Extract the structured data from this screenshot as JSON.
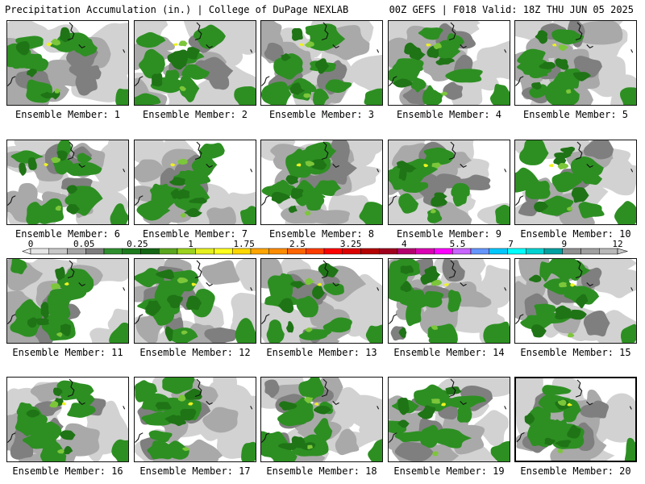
{
  "header": {
    "left": "Precipitation Accumulation (in.) | College of DuPage NEXLAB",
    "right": "00Z GEFS | F018 Valid: 18Z THU JUN 05 2025"
  },
  "panels": [
    {
      "label": "Ensemble Member: 1"
    },
    {
      "label": "Ensemble Member: 2"
    },
    {
      "label": "Ensemble Member: 3"
    },
    {
      "label": "Ensemble Member: 4"
    },
    {
      "label": "Ensemble Member: 5"
    },
    {
      "label": "Ensemble Member: 6"
    },
    {
      "label": "Ensemble Member: 7"
    },
    {
      "label": "Ensemble Member: 8"
    },
    {
      "label": "Ensemble Member: 9"
    },
    {
      "label": "Ensemble Member: 10"
    },
    {
      "label": "Ensemble Member: 11"
    },
    {
      "label": "Ensemble Member: 12"
    },
    {
      "label": "Ensemble Member: 13"
    },
    {
      "label": "Ensemble Member: 14"
    },
    {
      "label": "Ensemble Member: 15"
    },
    {
      "label": "Ensemble Member: 16"
    },
    {
      "label": "Ensemble Member: 17"
    },
    {
      "label": "Ensemble Member: 18"
    },
    {
      "label": "Ensemble Member: 19"
    },
    {
      "label": "Ensemble Member: 20"
    }
  ],
  "selected_member": 20,
  "colorbar": {
    "tick_labels": [
      "0",
      "0.05",
      "0.25",
      "1",
      "1.75",
      "2.5",
      "3.25",
      "4",
      "5.5",
      "7",
      "9",
      "12"
    ],
    "colors": [
      "#e6e6e6",
      "#c8c8c8",
      "#a5a5a5",
      "#7d7d7d",
      "#2f8f2f",
      "#1d7a1d",
      "#146614",
      "#5aa61e",
      "#9cd21e",
      "#e6f01e",
      "#ffff1e",
      "#ffd700",
      "#ffa500",
      "#ff8c00",
      "#ff6400",
      "#ff3c00",
      "#ff0000",
      "#dc0000",
      "#b40000",
      "#a0001e",
      "#b4006e",
      "#dc00b4",
      "#ff00ff",
      "#c864ff",
      "#6496ff",
      "#00c8ff",
      "#00ffff",
      "#00d2d2",
      "#00a0a0",
      "#909090",
      "#a0a0a0",
      "#b9b9b9"
    ]
  },
  "map_colors": {
    "light": "#d2d2d2",
    "mid": "#a9a9a9",
    "dark": "#7f7f7f",
    "green": "#2d8f22",
    "green_dark": "#1f7416",
    "green_light": "#7cc63a",
    "yellow": "#eef21e"
  }
}
